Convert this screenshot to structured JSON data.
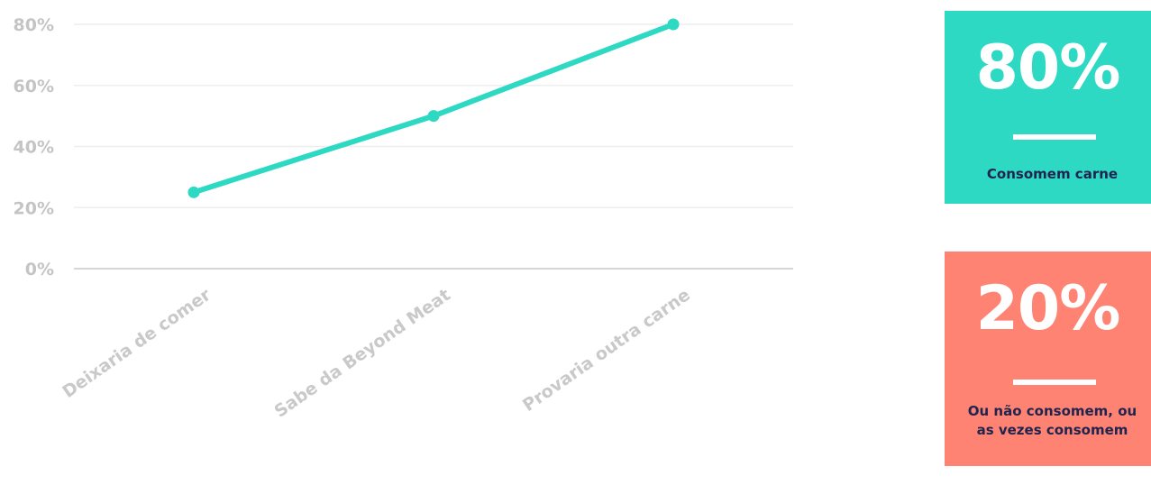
{
  "chart_data": {
    "type": "line",
    "categories": [
      "Deixaria de comer",
      "Sabe da Beyond Meat",
      "Provaria outra carne"
    ],
    "series": [
      {
        "values": [
          25,
          50,
          80
        ]
      }
    ],
    "y_ticks": [
      "0%",
      "20%",
      "40%",
      "60%",
      "80%"
    ],
    "ylim": [
      0,
      80
    ],
    "grid": true,
    "line_color": "#2ed9c3"
  },
  "stats": [
    {
      "value": "80%",
      "caption": "Consomem carne",
      "background": "#2ed9c3"
    },
    {
      "value": "20%",
      "caption": "Ou não consomem, ou\nas vezes consomem",
      "background": "#ff8373"
    }
  ],
  "colors": {
    "caption_text": "#20254f",
    "axis_text": "#c4c4c4",
    "grid": "#eeeeee"
  }
}
